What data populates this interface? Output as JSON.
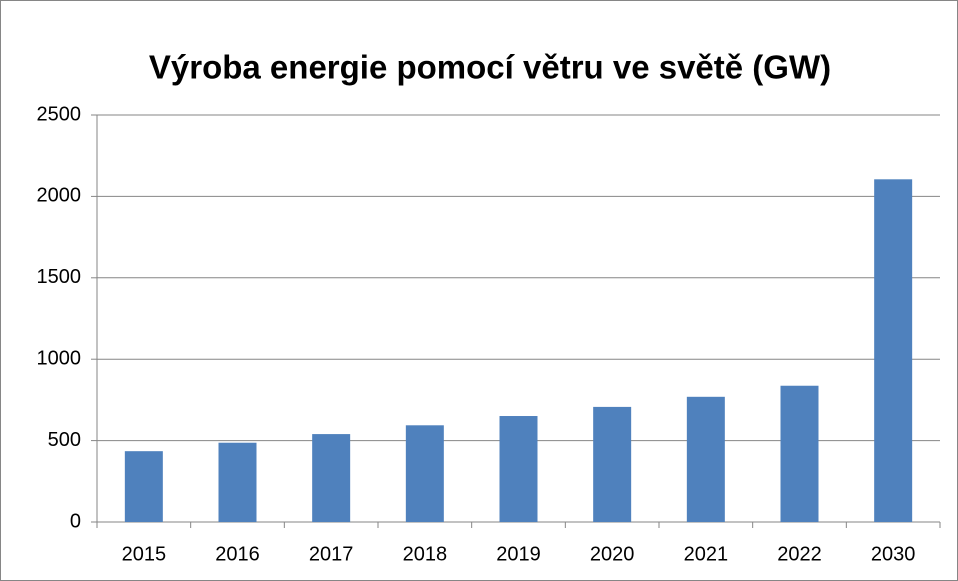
{
  "chart_data": {
    "type": "bar",
    "title": "Výroba energie pomocí větru ve světě (GW)",
    "categories": [
      "2015",
      "2016",
      "2017",
      "2018",
      "2019",
      "2020",
      "2021",
      "2022",
      "2030"
    ],
    "values": [
      435,
      487,
      540,
      594,
      651,
      707,
      769,
      837,
      2105
    ],
    "color": "#4f81bd",
    "ylim": [
      0,
      2500
    ],
    "yticks": [
      0,
      500,
      1000,
      1500,
      2000,
      2500
    ],
    "grid": true
  }
}
